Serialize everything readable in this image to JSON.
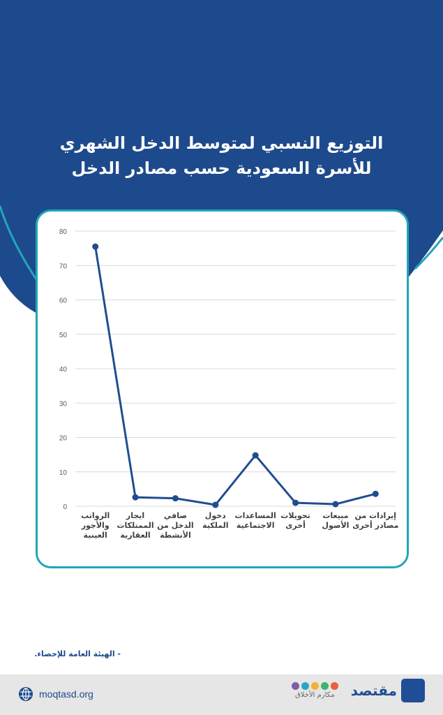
{
  "title_line1": "التوزيع النسبي لمتوسط الدخل الشهري",
  "title_line2": "للأسرة السعودية حسب مصادر الدخل",
  "colors": {
    "header": "#1d4a8c",
    "accent": "#22a6b8",
    "series": "#1f4e8f",
    "grid": "#d9d9d9"
  },
  "chart_data": {
    "type": "line",
    "categories": [
      [
        "الرواتب",
        "والأجور",
        "العينية"
      ],
      [
        "ايجار",
        "الممتلكات",
        "العقارية"
      ],
      [
        "صافي",
        "الدخل من",
        "الأنشطة"
      ],
      [
        "دخول",
        "الملكية"
      ],
      [
        "المساعدات",
        "الاجتماعية"
      ],
      [
        "تحويلات",
        "أخرى"
      ],
      [
        "مبيعات",
        "الأصول"
      ],
      [
        "إيرادات من",
        "مصادر أخرى"
      ]
    ],
    "values": [
      75.5,
      2.6,
      2.3,
      0.4,
      14.8,
      1.0,
      0.6,
      3.6
    ],
    "yticks": [
      0,
      10,
      20,
      30,
      40,
      50,
      60,
      70,
      80
    ],
    "ylim": [
      0,
      80
    ],
    "grid": true,
    "legend": "none"
  },
  "source": "- الهيئة العامة للإحصاء.",
  "footer": {
    "website": "moqtasd.org",
    "globe_icon": "globe-icon",
    "makarim_text": "مكارم الأخلاق",
    "makarim_colors": [
      "#7b5ea7",
      "#2aa7c0",
      "#f2b233",
      "#3cb371",
      "#e8603c"
    ],
    "moqtasd_text": "مقتصد"
  }
}
